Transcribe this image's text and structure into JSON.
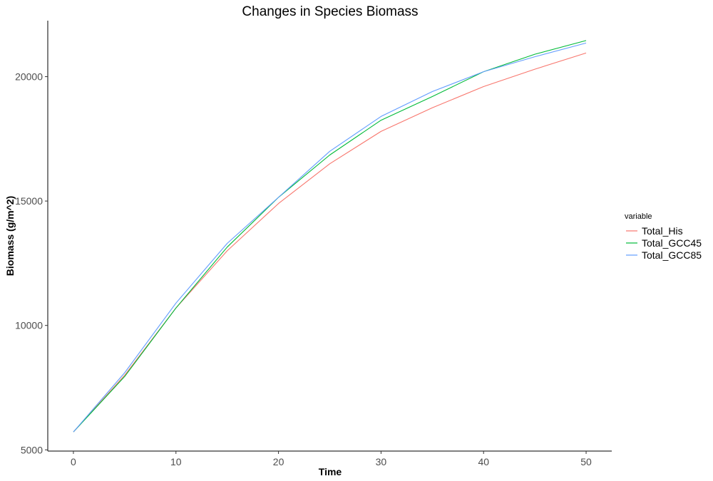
{
  "chart_data": {
    "type": "line",
    "title": "Changes in Species Biomass",
    "xlabel": "Time",
    "ylabel": "Biomass (g/m^2)",
    "xlim": [
      -2.5,
      52.5
    ],
    "ylim": [
      4950,
      22250
    ],
    "x_ticks": [
      0,
      10,
      20,
      30,
      40,
      50
    ],
    "y_ticks": [
      5000,
      10000,
      15000,
      20000
    ],
    "grid": false,
    "legend": {
      "title": "variable",
      "position": "right"
    },
    "x": [
      0,
      5,
      10,
      15,
      20,
      25,
      30,
      35,
      40,
      45,
      50
    ],
    "series": [
      {
        "name": "Total_His",
        "color": "#F8766D",
        "values": [
          5720,
          8000,
          10700,
          13000,
          14900,
          16500,
          17800,
          18750,
          19600,
          20300,
          20950
        ]
      },
      {
        "name": "Total_GCC45",
        "color": "#00BA38",
        "values": [
          5720,
          7950,
          10700,
          13150,
          15150,
          16850,
          18250,
          19200,
          20200,
          20900,
          21450
        ]
      },
      {
        "name": "Total_GCC85",
        "color": "#619CFF",
        "values": [
          5720,
          8100,
          10900,
          13300,
          15150,
          17000,
          18400,
          19400,
          20200,
          20800,
          21350
        ]
      }
    ]
  }
}
